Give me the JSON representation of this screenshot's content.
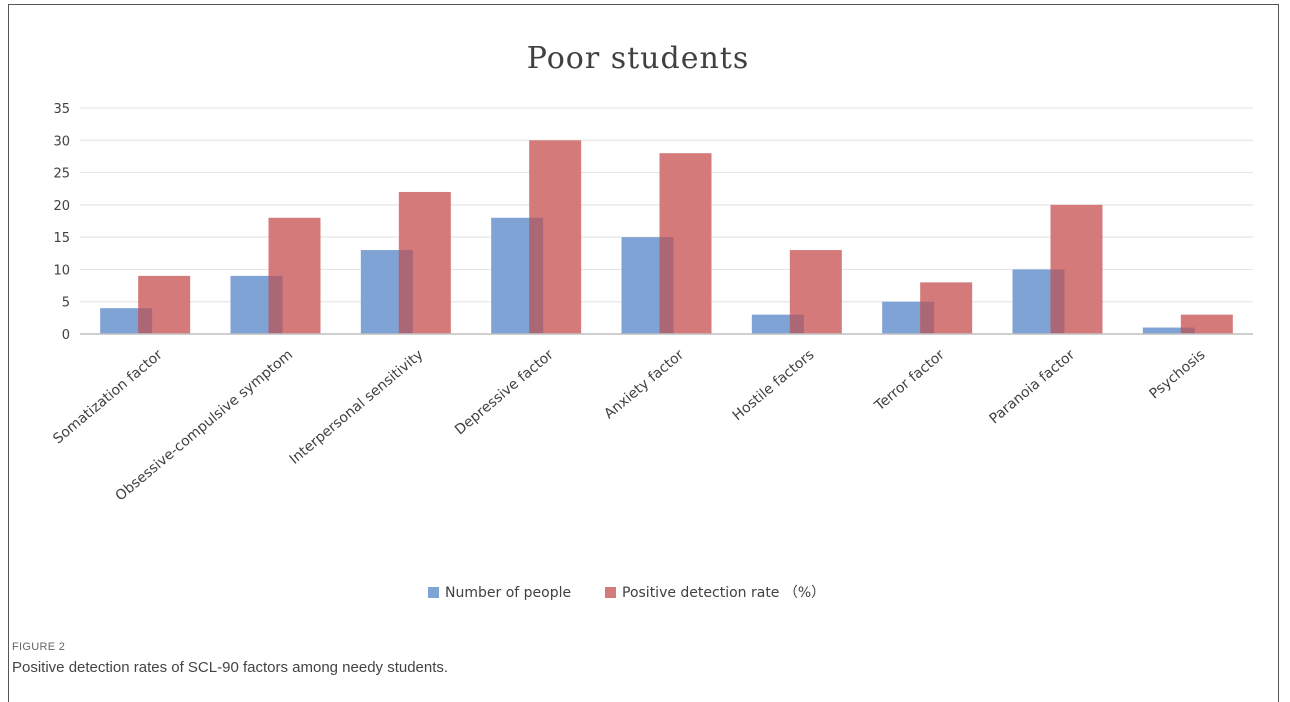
{
  "chart_data": {
    "type": "bar",
    "title": "Poor students",
    "categories": [
      "Somatization factor",
      "Obsessive-compulsive symptom",
      "Interpersonal sensitivity",
      "Depressive factor",
      "Anxiety factor",
      "Hostile factors",
      "Terror factor",
      "Paranoia factor",
      "Psychosis"
    ],
    "series": [
      {
        "name": "Number of people",
        "color": "#7fa3d4",
        "values": [
          4,
          9,
          13,
          18,
          15,
          3,
          5,
          10,
          1
        ]
      },
      {
        "name": "Positive detection rate （%）",
        "color": "#d57a7b",
        "values": [
          9,
          18,
          22,
          30,
          28,
          13,
          8,
          20,
          3
        ]
      }
    ],
    "ylim": [
      0,
      35
    ],
    "yticks": [
      0,
      5,
      10,
      15,
      20,
      25,
      30,
      35
    ],
    "grid": true,
    "legend": "bottom",
    "xlabel": "",
    "ylabel": ""
  },
  "figure": {
    "label": "FIGURE 2",
    "caption": "Positive detection rates of SCL-90 factors among needy students."
  }
}
